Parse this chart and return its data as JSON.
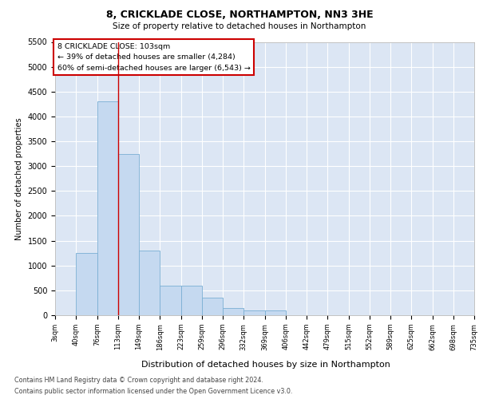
{
  "title_line1": "8, CRICKLADE CLOSE, NORTHAMPTON, NN3 3HE",
  "title_line2": "Size of property relative to detached houses in Northampton",
  "xlabel": "Distribution of detached houses by size in Northampton",
  "ylabel": "Number of detached properties",
  "annotation_title": "8 CRICKLADE CLOSE: 103sqm",
  "annotation_line2": "← 39% of detached houses are smaller (4,284)",
  "annotation_line3": "60% of semi-detached houses are larger (6,543) →",
  "footer_line1": "Contains HM Land Registry data © Crown copyright and database right 2024.",
  "footer_line2": "Contains public sector information licensed under the Open Government Licence v3.0.",
  "bar_color": "#c5d9f0",
  "bar_edge_color": "#7bafd4",
  "background_color": "#dce6f4",
  "vline_color": "#cc0000",
  "vline_x": 3.0,
  "annotation_box_color": "#ffffff",
  "annotation_box_edge": "#cc0000",
  "bins": [
    "3sqm",
    "40sqm",
    "76sqm",
    "113sqm",
    "149sqm",
    "186sqm",
    "223sqm",
    "259sqm",
    "296sqm",
    "332sqm",
    "369sqm",
    "406sqm",
    "442sqm",
    "479sqm",
    "515sqm",
    "552sqm",
    "589sqm",
    "625sqm",
    "662sqm",
    "698sqm",
    "735sqm"
  ],
  "values": [
    0,
    1250,
    4300,
    3250,
    1300,
    600,
    600,
    350,
    150,
    100,
    100,
    0,
    0,
    0,
    0,
    0,
    0,
    0,
    0,
    0
  ],
  "ylim": [
    0,
    5500
  ],
  "yticks": [
    0,
    500,
    1000,
    1500,
    2000,
    2500,
    3000,
    3500,
    4000,
    4500,
    5000,
    5500
  ]
}
